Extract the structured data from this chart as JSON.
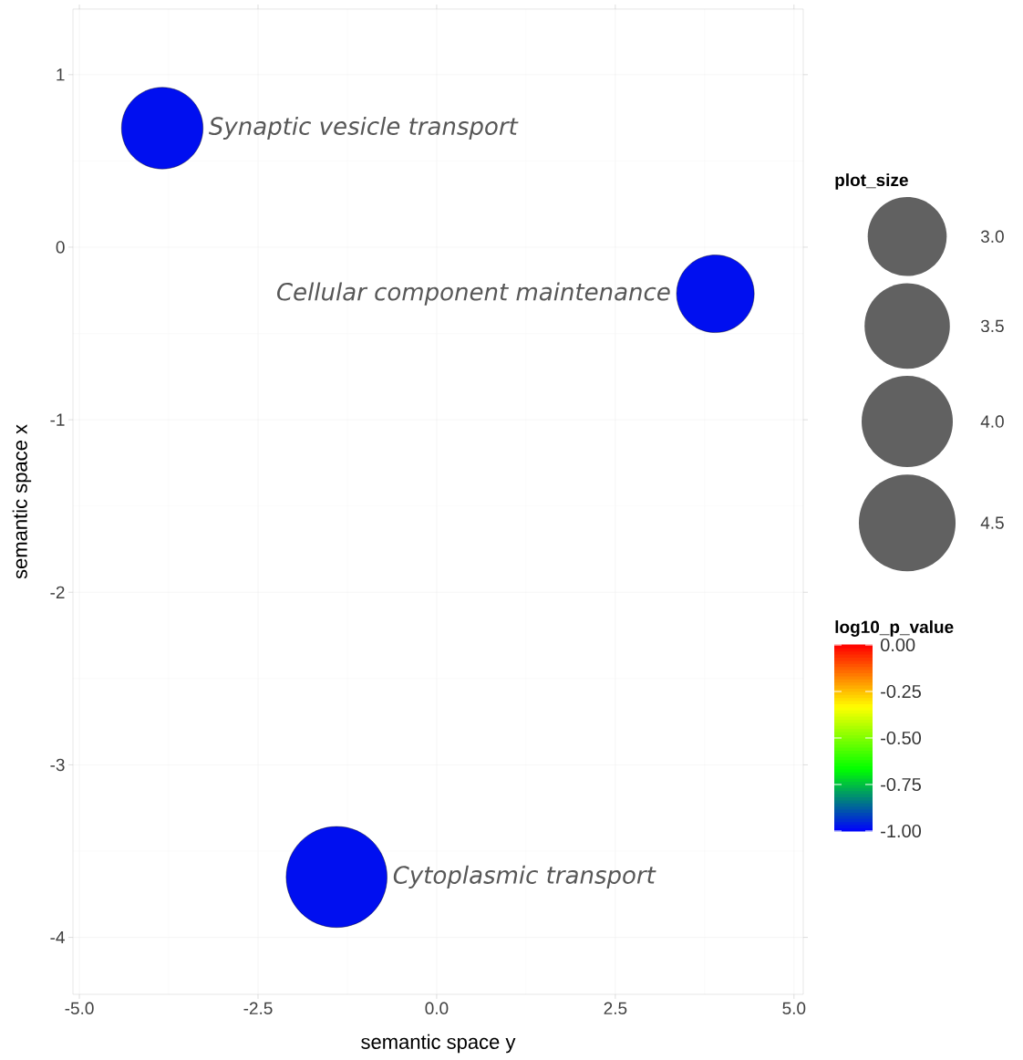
{
  "chart_data": {
    "type": "bubble",
    "xlabel": "semantic space y",
    "ylabel": "semantic space x",
    "x": [
      -3.84,
      3.9,
      -1.4
    ],
    "values": [
      0.69,
      -0.27,
      -3.65
    ],
    "sizes": [
      3.2,
      2.9,
      4.9
    ],
    "cvalues": [
      -0.98,
      -0.98,
      -0.98
    ],
    "value_labels": [
      "Synaptic vesicle transport",
      "Cellular component maintenance",
      "Cytoplasmic transport"
    ],
    "xlim": [
      -5.09,
      5.13
    ],
    "ylim": [
      -4.33,
      1.38
    ],
    "xticks": [
      {
        "value": -5,
        "label": "-5.0"
      },
      {
        "value": -2.5,
        "label": "-2.5"
      },
      {
        "value": 0,
        "label": "0.0"
      },
      {
        "value": 2.5,
        "label": "2.5"
      },
      {
        "value": 5,
        "label": "5.0"
      }
    ],
    "yticks": [
      -4,
      -3,
      -2,
      -1,
      0,
      1
    ],
    "grid": true,
    "legend_title": "plot_size",
    "size_legend": [
      {
        "value": 3,
        "label": "3.0"
      },
      {
        "value": 3.5,
        "label": "3.5"
      },
      {
        "value": 4,
        "label": "4.0"
      },
      {
        "value": 4.5,
        "label": "4.5"
      }
    ],
    "clabel": "log10_p_value",
    "clim": [
      -1,
      0
    ],
    "cticks": [
      {
        "value": 0,
        "label": "0.00"
      },
      {
        "value": -0.25,
        "label": "-0.25"
      },
      {
        "value": -0.5,
        "label": "-0.50"
      },
      {
        "value": -0.75,
        "label": "-0.75"
      },
      {
        "value": -1,
        "label": "-1.00"
      }
    ]
  }
}
